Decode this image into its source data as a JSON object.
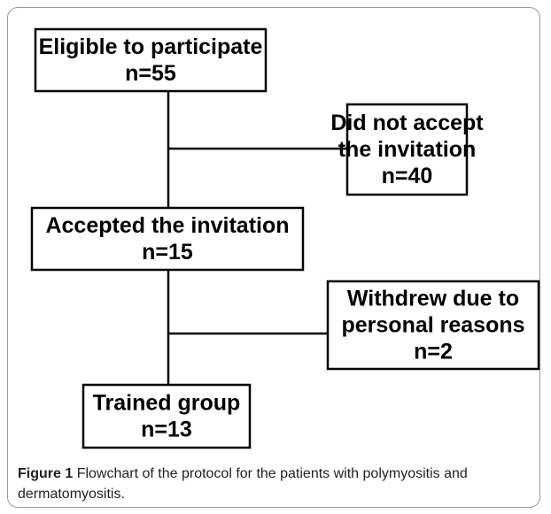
{
  "nodes": [
    {
      "lines": [
        "Eligible to participate",
        "n=55"
      ]
    },
    {
      "lines": [
        "Did not accept",
        "the invitation",
        "n=40"
      ]
    },
    {
      "lines": [
        "Accepted the invitation",
        "n=15"
      ]
    },
    {
      "lines": [
        "Withdrew due to",
        "personal reasons",
        "n=2"
      ]
    },
    {
      "lines": [
        "Trained group",
        "n=13"
      ]
    }
  ],
  "caption": {
    "label": "Figure 1",
    "text": "Flowchart of the protocol for the patients with polymyositis and dermatomyositis."
  }
}
